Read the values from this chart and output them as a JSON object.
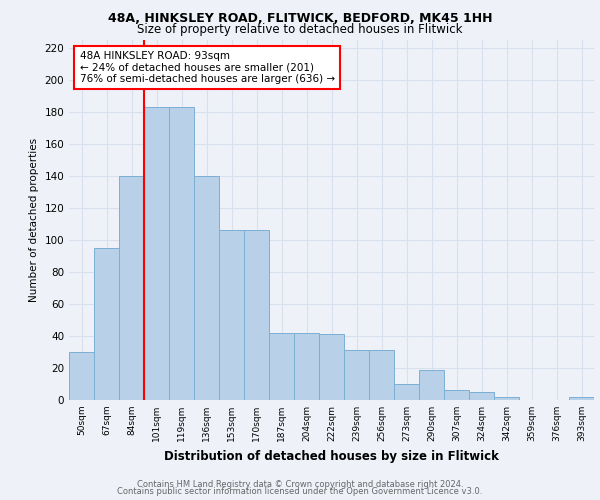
{
  "title1": "48A, HINKSLEY ROAD, FLITWICK, BEDFORD, MK45 1HH",
  "title2": "Size of property relative to detached houses in Flitwick",
  "xlabel": "Distribution of detached houses by size in Flitwick",
  "ylabel": "Number of detached properties",
  "categories": [
    "50sqm",
    "67sqm",
    "84sqm",
    "101sqm",
    "119sqm",
    "136sqm",
    "153sqm",
    "170sqm",
    "187sqm",
    "204sqm",
    "222sqm",
    "239sqm",
    "256sqm",
    "273sqm",
    "290sqm",
    "307sqm",
    "324sqm",
    "342sqm",
    "359sqm",
    "376sqm",
    "393sqm"
  ],
  "values": [
    30,
    95,
    140,
    183,
    183,
    140,
    106,
    106,
    42,
    42,
    41,
    31,
    31,
    10,
    19,
    6,
    5,
    2,
    0,
    0,
    2
  ],
  "bar_color": "#b8d0e8",
  "bar_edge_color": "#7bafd4",
  "ylim": [
    0,
    225
  ],
  "yticks": [
    0,
    20,
    40,
    60,
    80,
    100,
    120,
    140,
    160,
    180,
    200,
    220
  ],
  "redline_x": 2.5,
  "annotation_title": "48A HINKSLEY ROAD: 93sqm",
  "annotation_line1": "← 24% of detached houses are smaller (201)",
  "annotation_line2": "76% of semi-detached houses are larger (636) →",
  "footer1": "Contains HM Land Registry data © Crown copyright and database right 2024.",
  "footer2": "Contains public sector information licensed under the Open Government Licence v3.0.",
  "bg_color": "#eef2f8",
  "grid_color": "#d8e0ee"
}
